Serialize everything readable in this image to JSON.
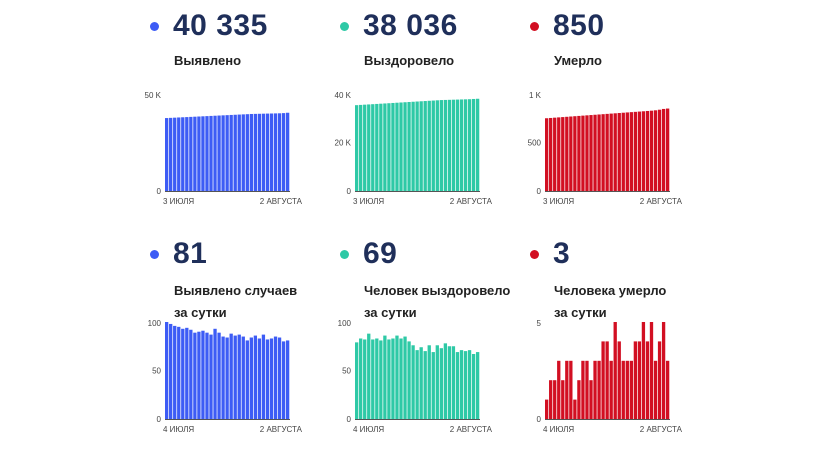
{
  "colors": {
    "blue": "#3d5cf5",
    "teal": "#2ec9a6",
    "red": "#d20f22",
    "number": "#1f2f5a"
  },
  "panels": [
    {
      "id": "p1",
      "color": "#3d5cf5",
      "value": "40 335",
      "label": [
        "Выявлено"
      ]
    },
    {
      "id": "p2",
      "color": "#2ec9a6",
      "value": "38 036",
      "label": [
        "Выздоровело"
      ]
    },
    {
      "id": "p3",
      "color": "#d20f22",
      "value": "850",
      "label": [
        "Умерло"
      ]
    },
    {
      "id": "p4",
      "color": "#3d5cf5",
      "value": "81",
      "label": [
        "Выявлено случаев",
        "за сутки"
      ]
    },
    {
      "id": "p5",
      "color": "#2ec9a6",
      "value": "69",
      "label": [
        "Человек выздоровело",
        "за сутки"
      ]
    },
    {
      "id": "p6",
      "color": "#d20f22",
      "value": "3",
      "label": [
        "Человека умерло",
        "за сутки"
      ]
    }
  ],
  "chart_data": [
    {
      "type": "bar",
      "title": "Выявлено",
      "color": "#3d5cf5",
      "ylim": [
        0,
        50000
      ],
      "yticks": [
        "50 K",
        "0"
      ],
      "ytick_values": [
        50000,
        0
      ],
      "xtick_labels": [
        "3 ИЮЛЯ",
        "2 АВГУСТА"
      ],
      "values": [
        37600,
        37700,
        37800,
        37900,
        38000,
        38100,
        38200,
        38300,
        38400,
        38500,
        38600,
        38700,
        38800,
        38900,
        39000,
        39100,
        39200,
        39300,
        39400,
        39500,
        39600,
        39700,
        39750,
        39800,
        39850,
        39900,
        39950,
        40000,
        40050,
        40150,
        40335
      ]
    },
    {
      "type": "bar",
      "title": "Выздоровело",
      "color": "#2ec9a6",
      "ylim": [
        0,
        40000
      ],
      "yticks": [
        "40 K",
        "20 K",
        "0"
      ],
      "ytick_values": [
        40000,
        20000,
        0
      ],
      "xtick_labels": [
        "3 ИЮЛЯ",
        "2 АВГУСТА"
      ],
      "values": [
        35400,
        35500,
        35600,
        35700,
        35800,
        35900,
        36000,
        36100,
        36200,
        36300,
        36400,
        36500,
        36600,
        36700,
        36800,
        36900,
        37000,
        37100,
        37200,
        37300,
        37400,
        37500,
        37550,
        37600,
        37650,
        37700,
        37750,
        37800,
        37850,
        37950,
        38036
      ]
    },
    {
      "type": "bar",
      "title": "Умерло",
      "color": "#d20f22",
      "ylim": [
        0,
        1000
      ],
      "yticks": [
        "1 K",
        "500",
        "0"
      ],
      "ytick_values": [
        1000,
        500,
        0
      ],
      "xtick_labels": [
        "3 ИЮЛЯ",
        "2 АВГУСТА"
      ],
      "values": [
        750,
        753,
        756,
        759,
        762,
        765,
        768,
        771,
        774,
        777,
        780,
        783,
        786,
        789,
        792,
        795,
        798,
        801,
        804,
        807,
        810,
        813,
        816,
        819,
        822,
        825,
        828,
        832,
        838,
        846,
        850
      ]
    },
    {
      "type": "bar",
      "title": "Выявлено случаев за сутки",
      "color": "#3d5cf5",
      "ylim": [
        0,
        100
      ],
      "yticks": [
        "100",
        "50",
        "0"
      ],
      "ytick_values": [
        100,
        50,
        0
      ],
      "xtick_labels": [
        "4 ИЮЛЯ",
        "2 АВГУСТА"
      ],
      "values": [
        100,
        98,
        96,
        95,
        93,
        94,
        92,
        89,
        90,
        91,
        89,
        87,
        93,
        89,
        85,
        84,
        88,
        86,
        87,
        85,
        81,
        84,
        86,
        83,
        87,
        82,
        83,
        85,
        84,
        80,
        81
      ]
    },
    {
      "type": "bar",
      "title": "Человек выздоровело за сутки",
      "color": "#2ec9a6",
      "ylim": [
        0,
        100
      ],
      "yticks": [
        "100",
        "50",
        "0"
      ],
      "ytick_values": [
        100,
        50,
        0
      ],
      "xtick_labels": [
        "4 ИЮЛЯ",
        "2 АВГУСТА"
      ],
      "values": [
        79,
        83,
        82,
        88,
        82,
        83,
        81,
        86,
        82,
        83,
        86,
        83,
        85,
        80,
        76,
        71,
        74,
        70,
        76,
        69,
        76,
        73,
        78,
        75,
        75,
        69,
        71,
        70,
        71,
        67,
        69
      ]
    },
    {
      "type": "bar",
      "title": "Человека умерло за сутки",
      "color": "#d20f22",
      "ylim": [
        0,
        5
      ],
      "yticks": [
        "5",
        "0"
      ],
      "ytick_values": [
        5,
        0
      ],
      "xtick_labels": [
        "4 ИЮЛЯ",
        "2 АВГУСТА"
      ],
      "values": [
        1,
        2,
        2,
        3,
        2,
        3,
        3,
        1,
        2,
        3,
        3,
        2,
        3,
        3,
        4,
        4,
        3,
        5,
        4,
        3,
        3,
        3,
        4,
        4,
        5,
        4,
        5,
        3,
        4,
        5,
        3
      ]
    }
  ]
}
